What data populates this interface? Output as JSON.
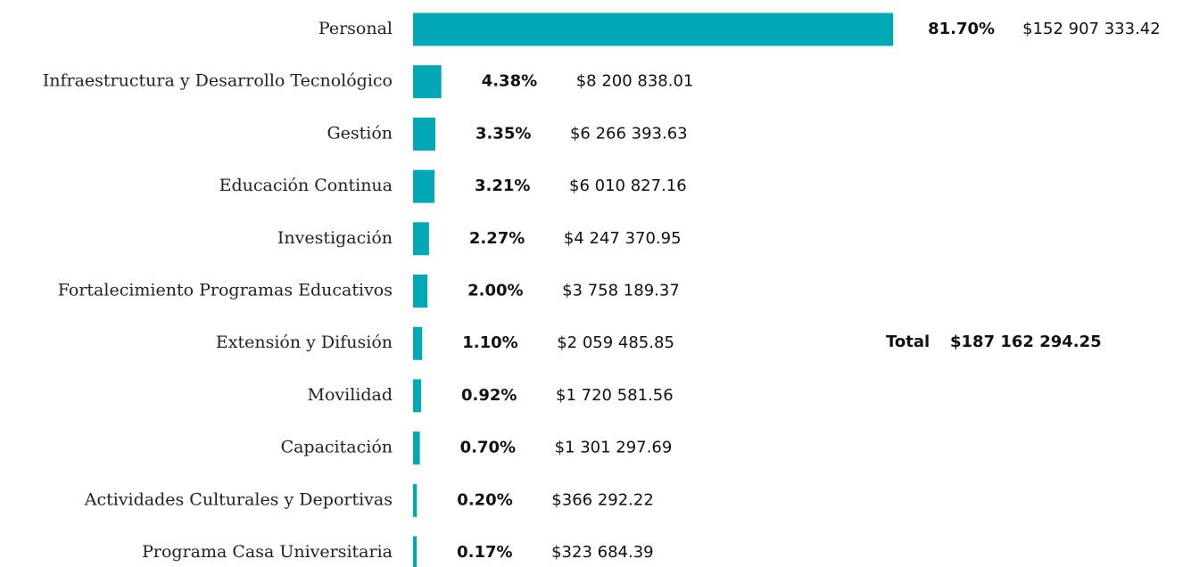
{
  "chart_data": {
    "type": "bar",
    "orientation": "horizontal",
    "color": "#00a9b5",
    "categories": [
      "Personal",
      "Infraestructura y Desarrollo Tecnológico",
      "Gestión",
      "Educación Continua",
      "Investigación",
      "Fortalecimiento Programas Educativos",
      "Extensión y Difusión",
      "Movilidad",
      "Capacitación",
      "Actividades Culturales y Deportivas",
      "Programa Casa Universitaria"
    ],
    "values": [
      81.7,
      4.38,
      3.35,
      3.21,
      2.27,
      2.0,
      1.1,
      0.92,
      0.7,
      0.2,
      0.17
    ],
    "value_labels": [
      "81.70%",
      "4.38%",
      "3.35%",
      "3.21%",
      "2.27%",
      "2.00%",
      "1.10%",
      "0.92%",
      "0.70%",
      "0.20%",
      "0.17%"
    ],
    "amounts": [
      "$152 907 333.42",
      "$8 200 838.01",
      "$6 266 393.63",
      "$6 010 827.16",
      "$4 247 370.95",
      "$3 758 189.37",
      "$2 059 485.85",
      "$1 720 581.56",
      "$1 301 297.69",
      "$366 292.22",
      "$323 684.39"
    ],
    "total": {
      "label": "Total",
      "value": "$187 162 294.25"
    }
  }
}
